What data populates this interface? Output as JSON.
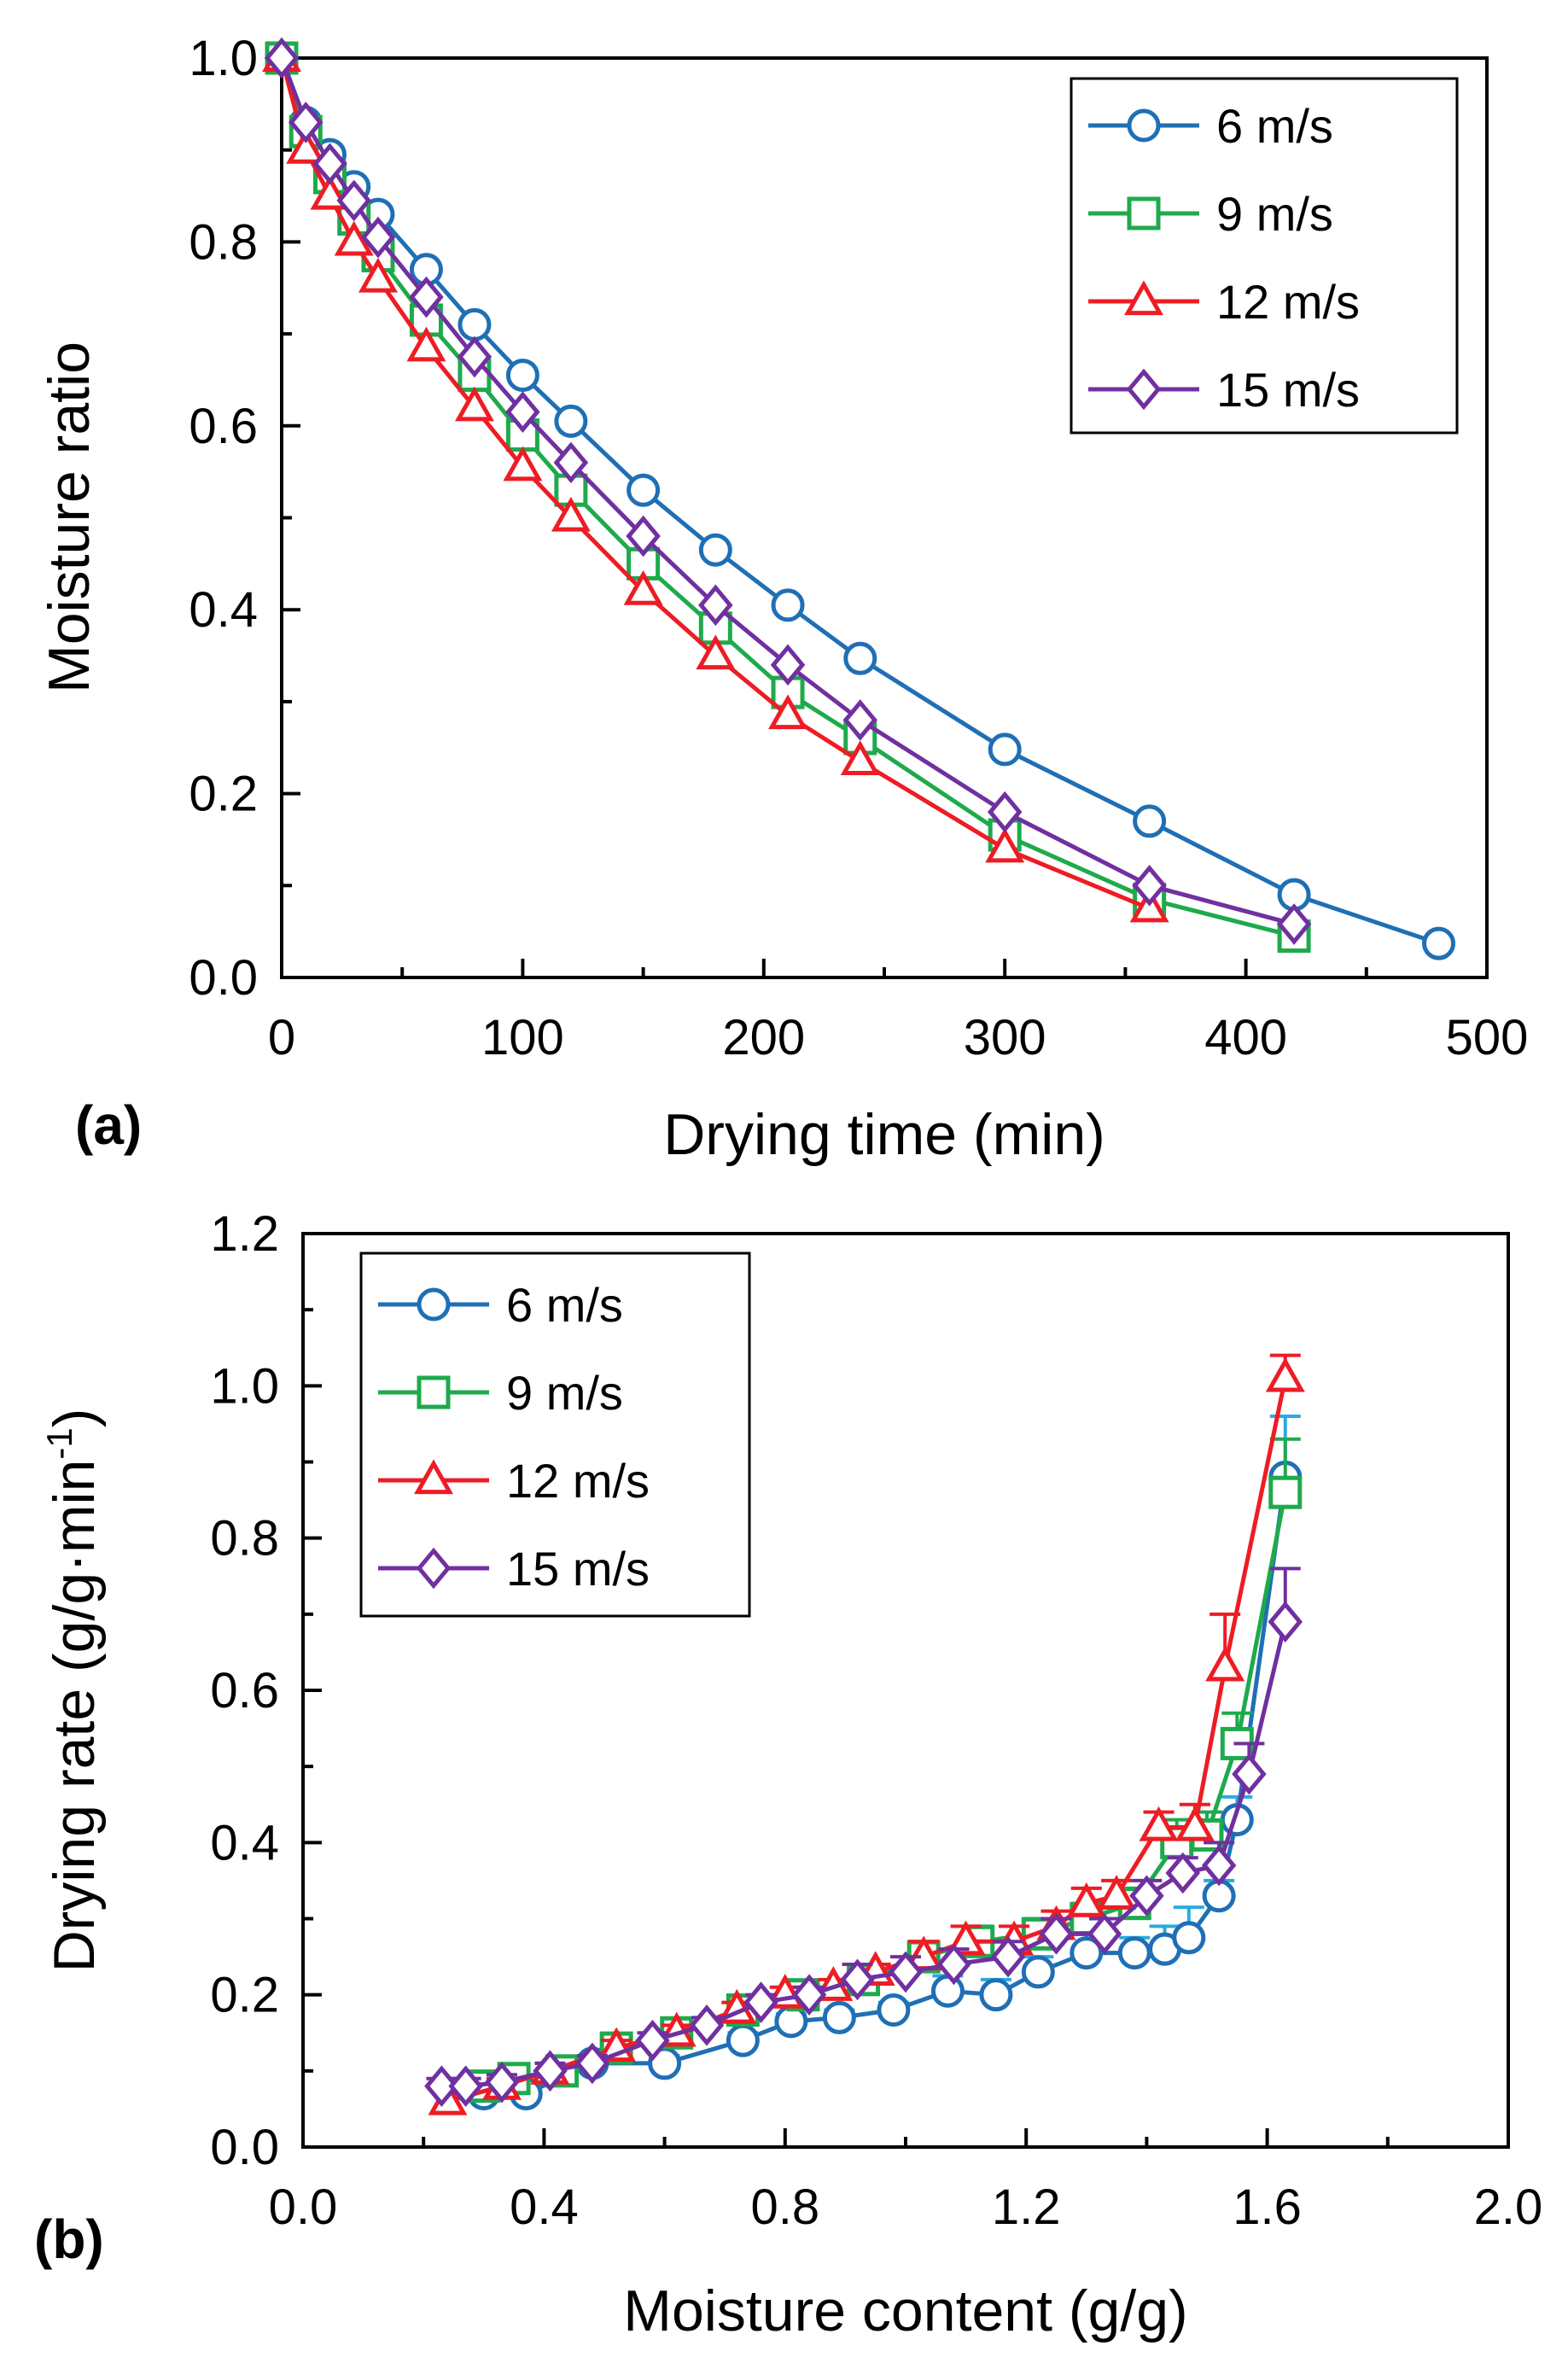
{
  "chart_data": [
    {
      "type": "line",
      "panel_label": "(a)",
      "xlabel": "Drying time (min)",
      "ylabel": "Moisture ratio",
      "xlim": [
        0,
        500
      ],
      "ylim": [
        0.0,
        1.0
      ],
      "xticks": [
        "0",
        "100",
        "200",
        "300",
        "400",
        "500"
      ],
      "yticks": [
        "0.0",
        "0.2",
        "0.4",
        "0.6",
        "0.8",
        "1.0"
      ],
      "legend_position": "top-right",
      "series": [
        {
          "name": "6 m/s",
          "color": "#1f6fb5",
          "marker": "circle",
          "filled": true,
          "x": [
            0,
            10,
            20,
            30,
            40,
            60,
            80,
            100,
            120,
            150,
            180,
            210,
            240,
            300,
            360,
            420,
            480
          ],
          "y": [
            1.0,
            0.93,
            0.895,
            0.86,
            0.83,
            0.77,
            0.71,
            0.655,
            0.605,
            0.53,
            0.465,
            0.405,
            0.347,
            0.248,
            0.17,
            0.09,
            0.037
          ]
        },
        {
          "name": "9 m/s",
          "color": "#1eaa4c",
          "marker": "square",
          "filled": true,
          "x": [
            0,
            10,
            20,
            30,
            40,
            60,
            80,
            100,
            120,
            150,
            180,
            210,
            240,
            300,
            360,
            420
          ],
          "y": [
            1.0,
            0.92,
            0.87,
            0.825,
            0.785,
            0.715,
            0.655,
            0.59,
            0.53,
            0.45,
            0.38,
            0.31,
            0.26,
            0.155,
            0.085,
            0.045
          ]
        },
        {
          "name": "12 m/s",
          "color": "#ee1c24",
          "marker": "triangle",
          "filled": true,
          "x": [
            0,
            10,
            20,
            30,
            40,
            60,
            80,
            100,
            120,
            150,
            180,
            210,
            240,
            300,
            360
          ],
          "y": [
            1.0,
            0.9,
            0.85,
            0.8,
            0.76,
            0.685,
            0.62,
            0.555,
            0.5,
            0.42,
            0.35,
            0.285,
            0.235,
            0.14,
            0.075
          ]
        },
        {
          "name": "15 m/s",
          "color": "#7030a0",
          "marker": "diamond",
          "filled": true,
          "x": [
            0,
            10,
            20,
            30,
            40,
            60,
            80,
            100,
            120,
            150,
            180,
            210,
            240,
            300,
            360,
            420
          ],
          "y": [
            1.0,
            0.93,
            0.885,
            0.845,
            0.805,
            0.74,
            0.675,
            0.615,
            0.56,
            0.48,
            0.405,
            0.34,
            0.28,
            0.18,
            0.1,
            0.058
          ]
        }
      ]
    },
    {
      "type": "line",
      "panel_label": "(b)",
      "xlabel": "Moisture content (g/g)",
      "ylabel_main": "Drying rate (g/g·min",
      "ylabel_sup": "-1",
      "ylabel_close": ")",
      "xlim": [
        0.0,
        2.0
      ],
      "ylim": [
        0.0,
        1.2
      ],
      "xticks": [
        "0.0",
        "0.4",
        "0.8",
        "1.2",
        "1.6",
        "2.0"
      ],
      "yticks": [
        "0.0",
        "0.2",
        "0.4",
        "0.6",
        "0.8",
        "1.0",
        "1.2"
      ],
      "legend_position": "top-left",
      "series": [
        {
          "name": "6 m/s",
          "color": "#1f6fb5",
          "errcolor": "#29abe2",
          "marker": "circle",
          "filled": false,
          "x": [
            0.3,
            0.37,
            0.48,
            0.6,
            0.73,
            0.81,
            0.89,
            0.98,
            1.07,
            1.15,
            1.22,
            1.3,
            1.38,
            1.43,
            1.47,
            1.52,
            1.55,
            1.63
          ],
          "y": [
            0.07,
            0.07,
            0.11,
            0.11,
            0.14,
            0.165,
            0.17,
            0.18,
            0.205,
            0.2,
            0.23,
            0.255,
            0.255,
            0.26,
            0.275,
            0.33,
            0.43,
            0.88
          ],
          "err": [
            0.01,
            0.01,
            0.01,
            0.01,
            0.01,
            0.01,
            0.01,
            0.01,
            0.02,
            0.02,
            0.02,
            0.03,
            0.02,
            0.03,
            0.04,
            0.02,
            0.03,
            0.08
          ]
        },
        {
          "name": "9 m/s",
          "color": "#1eaa4c",
          "errcolor": "#1eaa4c",
          "marker": "square",
          "filled": false,
          "x": [
            0.3,
            0.35,
            0.43,
            0.52,
            0.62,
            0.73,
            0.83,
            0.93,
            1.03,
            1.12,
            1.22,
            1.3,
            1.38,
            1.45,
            1.5,
            1.55,
            1.63
          ],
          "y": [
            0.08,
            0.09,
            0.1,
            0.13,
            0.15,
            0.18,
            0.2,
            0.22,
            0.25,
            0.27,
            0.28,
            0.3,
            0.32,
            0.4,
            0.41,
            0.53,
            0.86
          ],
          "err": [
            0.01,
            0.01,
            0.01,
            0.01,
            0.01,
            0.01,
            0.01,
            0.02,
            0.02,
            0.02,
            0.02,
            0.02,
            0.02,
            0.03,
            0.03,
            0.04,
            0.07
          ]
        },
        {
          "name": "12 m/s",
          "color": "#ee1c24",
          "errcolor": "#ee1c24",
          "marker": "triangle",
          "filled": false,
          "x": [
            0.24,
            0.33,
            0.41,
            0.52,
            0.62,
            0.72,
            0.8,
            0.88,
            0.95,
            1.03,
            1.1,
            1.18,
            1.25,
            1.3,
            1.35,
            1.42,
            1.48,
            1.53,
            1.63
          ],
          "y": [
            0.06,
            0.08,
            0.1,
            0.13,
            0.15,
            0.18,
            0.2,
            0.21,
            0.23,
            0.25,
            0.27,
            0.27,
            0.29,
            0.32,
            0.33,
            0.42,
            0.42,
            0.63,
            1.01
          ],
          "err": [
            0.01,
            0.01,
            0.01,
            0.01,
            0.01,
            0.01,
            0.01,
            0.01,
            0.01,
            0.02,
            0.02,
            0.02,
            0.02,
            0.02,
            0.02,
            0.02,
            0.03,
            0.07,
            0.03
          ]
        },
        {
          "name": "15 m/s",
          "color": "#7030a0",
          "errcolor": "#7030a0",
          "marker": "diamond",
          "filled": false,
          "x": [
            0.23,
            0.27,
            0.33,
            0.41,
            0.48,
            0.58,
            0.67,
            0.76,
            0.84,
            0.92,
            1.0,
            1.08,
            1.17,
            1.25,
            1.33,
            1.4,
            1.46,
            1.52,
            1.57,
            1.63
          ],
          "y": [
            0.08,
            0.08,
            0.085,
            0.1,
            0.11,
            0.14,
            0.16,
            0.19,
            0.2,
            0.22,
            0.23,
            0.24,
            0.25,
            0.28,
            0.28,
            0.33,
            0.36,
            0.37,
            0.49,
            0.69
          ],
          "err": [
            0.01,
            0.01,
            0.01,
            0.01,
            0.01,
            0.01,
            0.01,
            0.01,
            0.01,
            0.02,
            0.02,
            0.02,
            0.02,
            0.02,
            0.02,
            0.02,
            0.02,
            0.03,
            0.04,
            0.07
          ]
        }
      ]
    }
  ]
}
